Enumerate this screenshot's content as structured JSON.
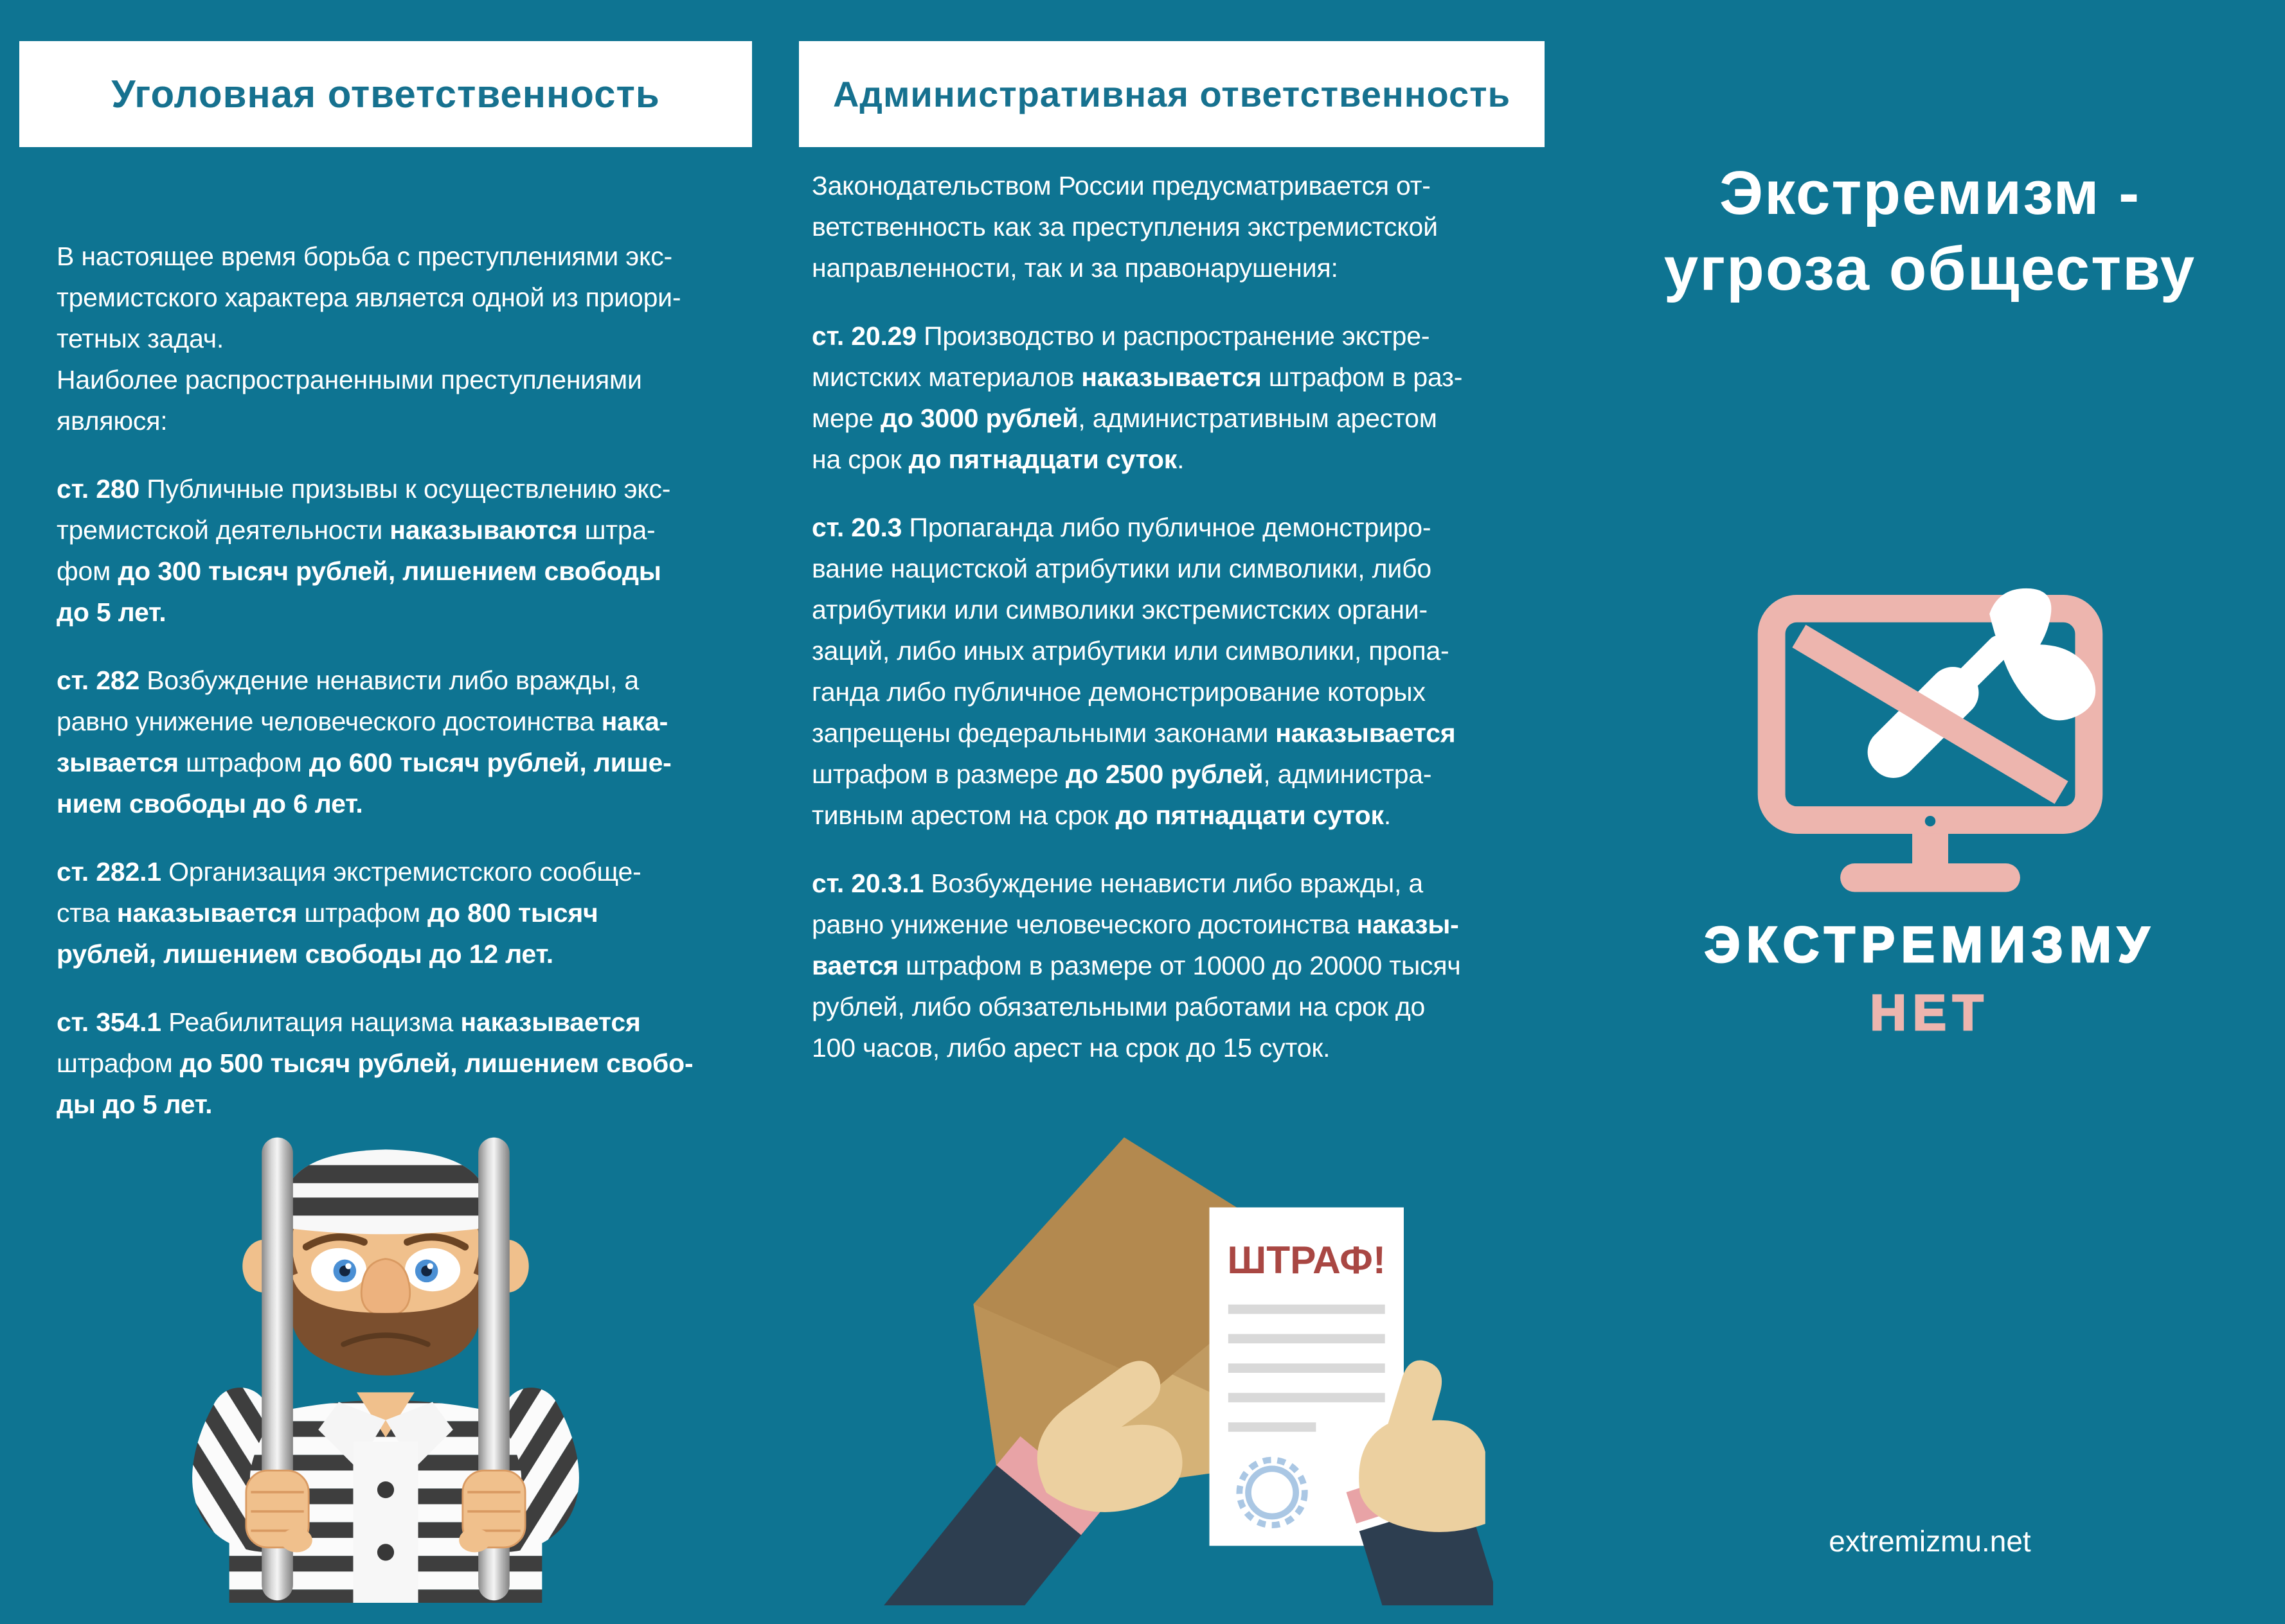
{
  "colors": {
    "background": "#0E7492",
    "panel_white": "#FFFFFF",
    "heading_teal": "#16718F",
    "accent_pink": "#EDB5AE",
    "fine_red": "#A94743",
    "body_text": "#FFFFFF"
  },
  "col1": {
    "header": "Уголовная ответственность",
    "paragraphs": [
      [
        [
          {
            "t": "В настоящее время борьба с преступлениями экс-"
          }
        ],
        [
          {
            "t": "тремистского характера является одной из приори-"
          }
        ],
        [
          {
            "t": "тетных задач."
          }
        ],
        [
          {
            "t": "Наиболее распространенными преступлениями"
          }
        ],
        [
          {
            "t": "являюся:"
          }
        ]
      ],
      [
        [
          {
            "t": "ст. 280",
            "b": true
          },
          {
            "t": " Публичные призывы к осуществлению экс-"
          }
        ],
        [
          {
            "t": "тремистской деятельности "
          },
          {
            "t": "наказываются",
            "b": true
          },
          {
            "t": " штра-"
          }
        ],
        [
          {
            "t": "фом "
          },
          {
            "t": "до 300 тысяч рублей, лишением свободы",
            "b": true
          }
        ],
        [
          {
            "t": "до 5 лет.",
            "b": true
          }
        ]
      ],
      [
        [
          {
            "t": "ст. 282",
            "b": true
          },
          {
            "t": " Возбуждение ненависти либо вражды, а"
          }
        ],
        [
          {
            "t": "равно унижение человеческого достоинства "
          },
          {
            "t": "нака-",
            "b": true
          }
        ],
        [
          {
            "t": "зывается",
            "b": true
          },
          {
            "t": " штрафом "
          },
          {
            "t": "до 600 тысяч рублей, лише-",
            "b": true
          }
        ],
        [
          {
            "t": "нием свободы до 6 лет.",
            "b": true
          }
        ]
      ],
      [
        [
          {
            "t": "ст. 282.1",
            "b": true
          },
          {
            "t": " Организация экстремистского сообще-"
          }
        ],
        [
          {
            "t": "ства "
          },
          {
            "t": "наказывается",
            "b": true
          },
          {
            "t": " штрафом "
          },
          {
            "t": "до 800 тысяч",
            "b": true
          }
        ],
        [
          {
            "t": "рублей, лишением свободы до 12 лет.",
            "b": true
          }
        ]
      ],
      [
        [
          {
            "t": "ст. 354.1",
            "b": true
          },
          {
            "t": " Реабилитация нацизма "
          },
          {
            "t": "наказывается",
            "b": true
          }
        ],
        [
          {
            "t": "штрафом "
          },
          {
            "t": "до 500 тысяч рублей, лишением свобо-",
            "b": true
          }
        ],
        [
          {
            "t": "ды до 5 лет.",
            "b": true
          }
        ]
      ]
    ]
  },
  "col2": {
    "header": "Административная ответственность",
    "paragraphs": [
      [
        [
          {
            "t": "Законодательством России предусматривается от-"
          }
        ],
        [
          {
            "t": "ветственность как за преступления экстремистской"
          }
        ],
        [
          {
            "t": "направленности, так и за правонарушения:"
          }
        ]
      ],
      [
        [
          {
            "t": "ст. 20.29",
            "b": true
          },
          {
            "t": " Производство и распространение экстре-"
          }
        ],
        [
          {
            "t": "мистских материалов "
          },
          {
            "t": "наказывается",
            "b": true
          },
          {
            "t": " штрафом в раз-"
          }
        ],
        [
          {
            "t": "мере "
          },
          {
            "t": "до 3000 рублей",
            "b": true
          },
          {
            "t": ", административным арестом"
          }
        ],
        [
          {
            "t": "на срок "
          },
          {
            "t": "до пятнадцати суток",
            "b": true
          },
          {
            "t": "."
          }
        ]
      ],
      [
        [
          {
            "t": "ст. 20.3",
            "b": true
          },
          {
            "t": " Пропаганда либо публичное демонстриро-"
          }
        ],
        [
          {
            "t": "вание нацистской атрибутики или символики, либо"
          }
        ],
        [
          {
            "t": "атрибутики или символики экстремистских органи-"
          }
        ],
        [
          {
            "t": "заций, либо иных атрибутики или символики, пропа-"
          }
        ],
        [
          {
            "t": "ганда либо публичное демонстрирование которых"
          }
        ],
        [
          {
            "t": "запрещены федеральными законами "
          },
          {
            "t": "наказывается",
            "b": true
          }
        ],
        [
          {
            "t": "штрафом в размере "
          },
          {
            "t": "до 2500 рублей",
            "b": true
          },
          {
            "t": ", администра-"
          }
        ],
        [
          {
            "t": "тивным арестом на срок "
          },
          {
            "t": "до пятнадцати суток",
            "b": true
          },
          {
            "t": "."
          }
        ]
      ],
      [
        [
          {
            "t": "ст. 20.3.1",
            "b": true
          },
          {
            "t": " Возбуждение ненависти либо вражды, а"
          }
        ],
        [
          {
            "t": "равно унижение человеческого достоинства "
          },
          {
            "t": "наказы-",
            "b": true
          }
        ],
        [
          {
            "t": "вается",
            "b": true
          },
          {
            "t": " штрафом в размере от 10000 до 20000 тысяч"
          }
        ],
        [
          {
            "t": "рублей, либо обязательными работами на срок до"
          }
        ],
        [
          {
            "t": "100 часов, либо арест на срок до 15 суток."
          }
        ]
      ]
    ],
    "fine_label": "ШТРАФ!"
  },
  "col3": {
    "title_line1": "Экстремизм -",
    "title_line2": "угроза обществу",
    "slogan_line1": "ЭКСТРЕМИЗМУ",
    "slogan_line2": "НЕТ",
    "site": "extremizmu.net"
  }
}
